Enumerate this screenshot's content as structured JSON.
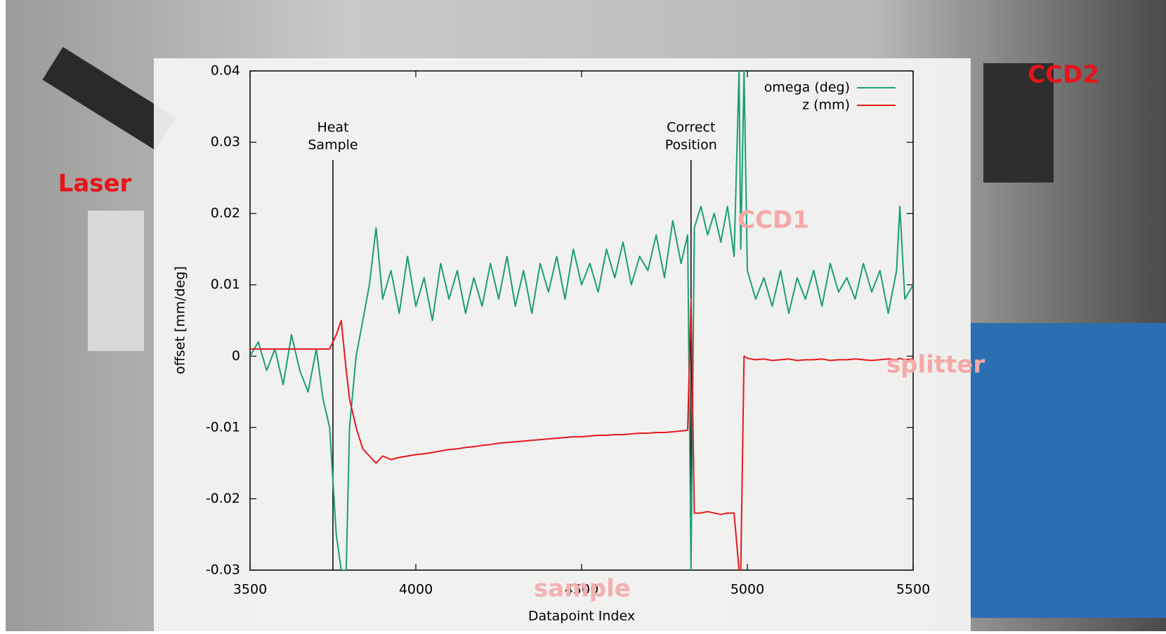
{
  "chart_data": {
    "type": "line",
    "y_label": "offset [mm/deg]",
    "x_label": "Datapoint Index",
    "xlim": [
      3500,
      5500
    ],
    "xticks": [
      3500,
      4000,
      4500,
      5000,
      5500
    ],
    "ylim": [
      -0.03,
      0.04
    ],
    "yticks": [
      -0.03,
      -0.02,
      -0.01,
      0,
      0.01,
      0.02,
      0.03,
      0.04
    ],
    "legend": "top-right",
    "annotations": [
      {
        "text": [
          "Heat",
          "Sample"
        ],
        "x": 3750
      },
      {
        "text": [
          "Correct",
          "Position"
        ],
        "x": 4830
      }
    ],
    "x": [
      3500,
      3525,
      3550,
      3575,
      3600,
      3625,
      3650,
      3675,
      3700,
      3720,
      3740,
      3760,
      3775,
      3790,
      3800,
      3820,
      3840,
      3860,
      3880,
      3900,
      3925,
      3950,
      3975,
      4000,
      4025,
      4050,
      4075,
      4100,
      4125,
      4150,
      4175,
      4200,
      4225,
      4250,
      4275,
      4300,
      4325,
      4350,
      4375,
      4400,
      4425,
      4450,
      4475,
      4500,
      4525,
      4550,
      4575,
      4600,
      4625,
      4650,
      4675,
      4700,
      4725,
      4750,
      4775,
      4800,
      4820,
      4830,
      4840,
      4860,
      4880,
      4900,
      4920,
      4940,
      4960,
      4975,
      4980,
      4990,
      5000,
      5025,
      5050,
      5075,
      5100,
      5125,
      5150,
      5175,
      5200,
      5225,
      5250,
      5275,
      5300,
      5325,
      5350,
      5375,
      5400,
      5425,
      5450,
      5460,
      5475,
      5500
    ],
    "series": [
      {
        "name": "omega (deg)",
        "color": "#1a9e77",
        "values": [
          0.0,
          0.002,
          -0.002,
          0.001,
          -0.004,
          0.003,
          -0.002,
          -0.005,
          0.001,
          -0.006,
          -0.01,
          -0.025,
          -0.03,
          -0.03,
          -0.01,
          0.0,
          0.005,
          0.01,
          0.018,
          0.008,
          0.012,
          0.006,
          0.014,
          0.007,
          0.011,
          0.005,
          0.013,
          0.008,
          0.012,
          0.006,
          0.011,
          0.007,
          0.013,
          0.008,
          0.014,
          0.007,
          0.012,
          0.006,
          0.013,
          0.009,
          0.014,
          0.008,
          0.015,
          0.01,
          0.013,
          0.009,
          0.015,
          0.011,
          0.016,
          0.01,
          0.014,
          0.012,
          0.017,
          0.011,
          0.019,
          0.013,
          0.017,
          -0.03,
          0.018,
          0.021,
          0.017,
          0.02,
          0.016,
          0.021,
          0.014,
          0.04,
          0.015,
          0.04,
          0.012,
          0.008,
          0.011,
          0.007,
          0.012,
          0.006,
          0.011,
          0.008,
          0.012,
          0.007,
          0.013,
          0.009,
          0.011,
          0.008,
          0.013,
          0.009,
          0.012,
          0.006,
          0.012,
          0.021,
          0.008,
          0.01
        ]
      },
      {
        "name": "z (mm)",
        "color": "#e41a1c",
        "values": [
          0.001,
          0.001,
          0.001,
          0.001,
          0.001,
          0.001,
          0.001,
          0.001,
          0.001,
          0.001,
          0.001,
          0.003,
          0.005,
          -0.002,
          -0.006,
          -0.01,
          -0.013,
          -0.014,
          -0.015,
          -0.014,
          -0.0145,
          -0.0142,
          -0.014,
          -0.0138,
          -0.0137,
          -0.0135,
          -0.0133,
          -0.0131,
          -0.013,
          -0.0128,
          -0.0127,
          -0.0125,
          -0.0124,
          -0.0122,
          -0.0121,
          -0.012,
          -0.0119,
          -0.0118,
          -0.0117,
          -0.0116,
          -0.0115,
          -0.0114,
          -0.0113,
          -0.0113,
          -0.0112,
          -0.0111,
          -0.0111,
          -0.011,
          -0.011,
          -0.0109,
          -0.0108,
          -0.0108,
          -0.0107,
          -0.0107,
          -0.0106,
          -0.0105,
          -0.0104,
          0.008,
          -0.022,
          -0.022,
          -0.0218,
          -0.022,
          -0.0222,
          -0.022,
          -0.022,
          -0.03,
          -0.03,
          0.0,
          -0.0003,
          -0.0005,
          -0.0004,
          -0.0006,
          -0.0005,
          -0.0004,
          -0.0006,
          -0.0005,
          -0.0005,
          -0.0004,
          -0.0006,
          -0.0005,
          -0.0005,
          -0.0004,
          -0.0005,
          -0.0006,
          -0.0005,
          -0.0004,
          -0.0005,
          -0.0003,
          -0.0005,
          -0.0004
        ]
      }
    ]
  },
  "labels": {
    "laser": "Laser",
    "ccd2": "CCD2",
    "ccd1": "CCD1",
    "splitter": "splitter",
    "sample": "sample"
  }
}
